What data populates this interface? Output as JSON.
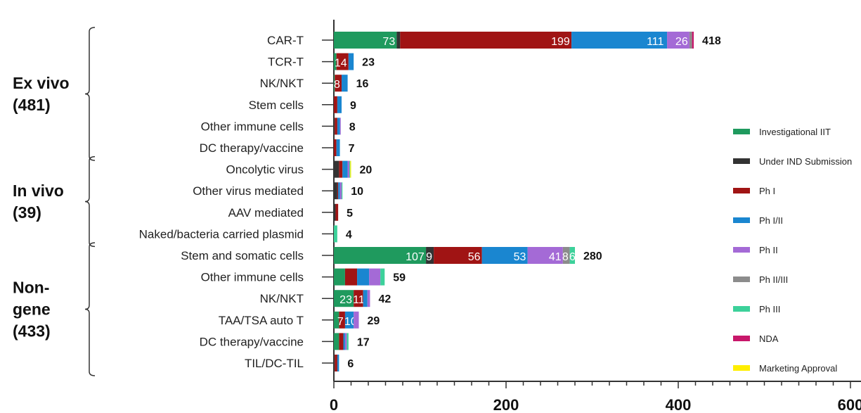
{
  "chart_data": {
    "type": "bar",
    "orientation": "horizontal",
    "stacked": true,
    "xlim": [
      0,
      600
    ],
    "xticks": [
      "0",
      "200",
      "400",
      "600"
    ],
    "legend_position": "right",
    "series": [
      {
        "name": "Investigational IIT",
        "color": "#1f9a5e"
      },
      {
        "name": "Under IND Submission",
        "color": "#333333"
      },
      {
        "name": "Ph I",
        "color": "#a01414"
      },
      {
        "name": "Ph I/II",
        "color": "#1a86d0"
      },
      {
        "name": "Ph II",
        "color": "#a46ad6"
      },
      {
        "name": "Ph II/III",
        "color": "#8c8c8c"
      },
      {
        "name": "Ph III",
        "color": "#3cd19a"
      },
      {
        "name": "NDA",
        "color": "#c8176a"
      },
      {
        "name": "Marketing Approval",
        "color": "#ffee00"
      }
    ],
    "groups": [
      {
        "label": "Ex vivo",
        "count": "(481)",
        "rows": [
          0,
          5
        ]
      },
      {
        "label": "In vivo",
        "count": "(39)",
        "rows": [
          6,
          9
        ]
      },
      {
        "label": "Non-\ngene",
        "count": "(433)",
        "rows": [
          10,
          15
        ]
      }
    ],
    "categories": [
      {
        "label": "CAR-T",
        "total": 418,
        "values": [
          73,
          4,
          199,
          111,
          26,
          3,
          0,
          2,
          0
        ],
        "shown": [
          73,
          null,
          199,
          111,
          26,
          null,
          null,
          null,
          null
        ]
      },
      {
        "label": "TCR-T",
        "total": 23,
        "values": [
          3,
          0,
          14,
          6,
          0,
          0,
          0,
          0,
          0
        ],
        "shown": [
          null,
          null,
          14,
          null,
          null,
          null,
          null,
          null,
          null
        ]
      },
      {
        "label": "NK/NKT",
        "total": 16,
        "values": [
          1,
          0,
          8,
          7,
          0,
          0,
          0,
          0,
          0
        ],
        "shown": [
          null,
          null,
          8,
          null,
          null,
          null,
          null,
          null,
          null
        ]
      },
      {
        "label": "Stem cells",
        "total": 9,
        "values": [
          0,
          0,
          4,
          5,
          0,
          0,
          0,
          0,
          0
        ]
      },
      {
        "label": "Other immune cells",
        "total": 8,
        "values": [
          0,
          1,
          3,
          3,
          1,
          0,
          0,
          0,
          0
        ]
      },
      {
        "label": "DC therapy/vaccine",
        "total": 7,
        "values": [
          0,
          0,
          3,
          4,
          0,
          0,
          0,
          0,
          0
        ]
      },
      {
        "label": "Oncolytic virus",
        "total": 20,
        "values": [
          0,
          6,
          4,
          6,
          2,
          0,
          1,
          0,
          1
        ]
      },
      {
        "label": "Other virus mediated",
        "total": 10,
        "values": [
          0,
          4,
          1,
          2,
          2,
          0,
          1,
          0,
          0
        ]
      },
      {
        "label": "AAV mediated",
        "total": 5,
        "values": [
          0,
          2,
          3,
          0,
          0,
          0,
          0,
          0,
          0
        ]
      },
      {
        "label": "Naked/bacteria carried plasmid",
        "total": 4,
        "values": [
          0,
          0,
          0,
          0,
          0,
          0,
          4,
          0,
          0
        ]
      },
      {
        "label": "Stem and somatic cells",
        "total": 280,
        "values": [
          107,
          9,
          56,
          53,
          41,
          8,
          6,
          0,
          0
        ],
        "shown": [
          107,
          9,
          56,
          53,
          41,
          8,
          6,
          null,
          null
        ]
      },
      {
        "label": "Other immune cells",
        "total": 59,
        "values": [
          13,
          0,
          14,
          14,
          13,
          0,
          5,
          0,
          0
        ]
      },
      {
        "label": "NK/NKT",
        "total": 42,
        "values": [
          23,
          0,
          11,
          5,
          3,
          0,
          0,
          0,
          0
        ],
        "shown": [
          23,
          null,
          11,
          null,
          null,
          null,
          null,
          null,
          null
        ]
      },
      {
        "label": "TAA/TSA auto T",
        "total": 29,
        "values": [
          6,
          0,
          7,
          10,
          6,
          0,
          0,
          0,
          0
        ],
        "shown": [
          null,
          null,
          7,
          10,
          null,
          null,
          null,
          null,
          null
        ]
      },
      {
        "label": "DC therapy/vaccine",
        "total": 17,
        "values": [
          6,
          0,
          5,
          2,
          2,
          0,
          2,
          0,
          0
        ]
      },
      {
        "label": "TIL/DC-TIL",
        "total": 6,
        "values": [
          0,
          1,
          3,
          2,
          0,
          0,
          0,
          0,
          0
        ]
      }
    ]
  }
}
